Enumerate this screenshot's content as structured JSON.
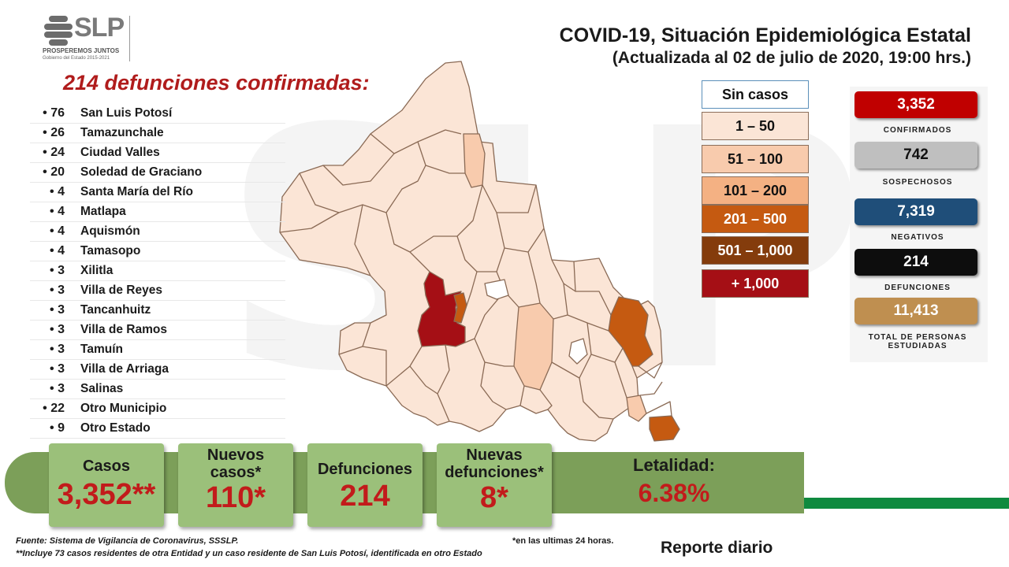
{
  "logo": {
    "letters": "SLP",
    "slogan": "PROSPEREMOS JUNTOS",
    "gov": "Gobierno del Estado 2015-2021"
  },
  "title": {
    "line1": "COVID-19, Situación Epidemiológica Estatal",
    "line2": "(Actualizada al 02 de julio de 2020, 19:00 hrs.)"
  },
  "deaths": {
    "heading": "214 defunciones confirmadas:",
    "rows": [
      {
        "count": "76",
        "name": "San Luis Potosí"
      },
      {
        "count": "26",
        "name": "Tamazunchale"
      },
      {
        "count": "24",
        "name": "Ciudad Valles"
      },
      {
        "count": "20",
        "name": "Soledad de Graciano"
      },
      {
        "count": "4",
        "name": "Santa María del Río"
      },
      {
        "count": "4",
        "name": "Matlapa"
      },
      {
        "count": "4",
        "name": "Aquismón"
      },
      {
        "count": "4",
        "name": "Tamasopo"
      },
      {
        "count": "3",
        "name": "Xilitla"
      },
      {
        "count": "3",
        "name": "Villa de Reyes"
      },
      {
        "count": "3",
        "name": "Tancanhuitz"
      },
      {
        "count": "3",
        "name": "Villa de Ramos"
      },
      {
        "count": "3",
        "name": "Tamuín"
      },
      {
        "count": "3",
        "name": "Villa de Arriaga"
      },
      {
        "count": "3",
        "name": "Salinas"
      },
      {
        "count": "22",
        "name": "Otro Municipio"
      },
      {
        "count": "9",
        "name": "Otro Estado"
      }
    ]
  },
  "legend": [
    {
      "label": "Sin casos",
      "color": "#ffffff",
      "text_color": "#111111"
    },
    {
      "label": "1 – 50",
      "color": "#fbe5d6",
      "text_color": "#111111"
    },
    {
      "label": "51 – 100",
      "color": "#f8cbad",
      "text_color": "#111111"
    },
    {
      "label": "101 – 200",
      "color": "#f4b183",
      "text_color": "#111111"
    },
    {
      "label": "201 – 500",
      "color": "#c55a11",
      "text_color": "#ffffff"
    },
    {
      "label": "501 – 1,000",
      "color": "#843c0c",
      "text_color": "#ffffff"
    },
    {
      "label": "+ 1,000",
      "color": "#a50f15",
      "text_color": "#ffffff"
    }
  ],
  "stats": [
    {
      "value": "3,352",
      "label": "CONFIRMADOS",
      "color": "#c00000",
      "text_color": "#ffffff"
    },
    {
      "value": "742",
      "label": "SOSPECHOSOS",
      "color": "#bfbfbf",
      "text_color": "#111111"
    },
    {
      "value": "7,319",
      "label": "NEGATIVOS",
      "color": "#1f4e79",
      "text_color": "#ffffff"
    },
    {
      "value": "214",
      "label": "DEFUNCIONES",
      "color": "#0d0d0d",
      "text_color": "#ffffff"
    },
    {
      "value": "11,413",
      "label": "TOTAL DE PERSONAS\nESTUDIADAS",
      "color": "#bf8f50",
      "text_color": "#ffffff"
    }
  ],
  "summary": {
    "casos": {
      "label": "Casos",
      "value": "3,352**"
    },
    "nuevos_casos": {
      "label": "Nuevos\ncasos*",
      "value": "110*"
    },
    "defunciones": {
      "label": "Defunciones",
      "value": "214"
    },
    "nuevas_defunciones": {
      "label": "Nuevas\ndefunciones*",
      "value": "8*"
    },
    "letalidad": {
      "label": "Letalidad:",
      "value": "6.38%"
    }
  },
  "footer": {
    "source": "Fuente: Sistema de Vigilancia  de Coronavirus, SSSLP.",
    "note": "**Incluye 73 casos residentes de otra Entidad y un caso residente de San Luis Potosí, identificada  en otro Estado",
    "last24": "*en las ultimas 24 horas.",
    "report": "Reporte diario"
  }
}
